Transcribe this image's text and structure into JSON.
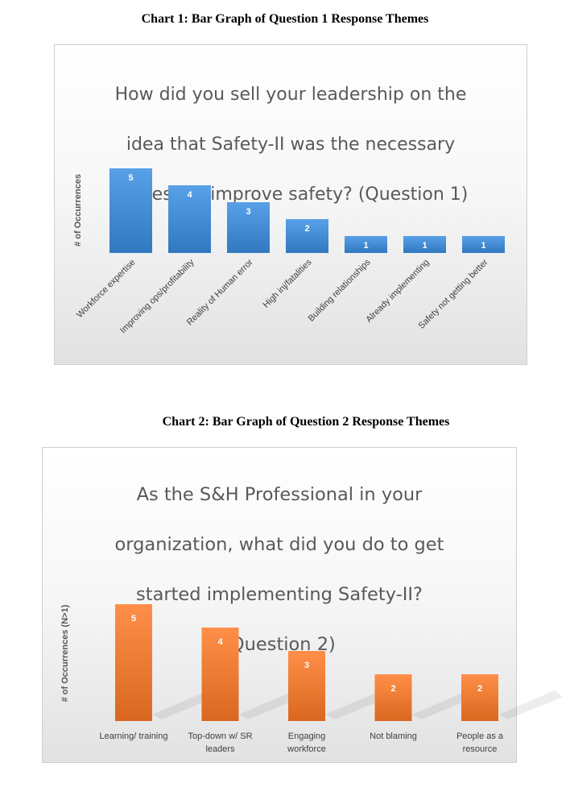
{
  "chart_data": [
    {
      "type": "bar",
      "caption": "Chart 1: Bar Graph of Question 1 Response Themes",
      "title": "How did you sell your leadership on the idea that Safety-II was the necessary process to improve safety? (Question 1)",
      "title_lines": [
        "How did you sell your leadership on the",
        "idea that Safety-II was the necessary",
        "process to improve safety? (Question 1)"
      ],
      "ylabel": "# of Occurrences",
      "xlabel": "",
      "categories": [
        "Workforce expertise",
        "Improving ops/profitability",
        "Reality of Human error",
        "High inj/fatalities",
        "Building relationships",
        "Already implementing",
        "Safety not getting better"
      ],
      "values": [
        5,
        4,
        3,
        2,
        1,
        1,
        1
      ],
      "ylim": [
        0,
        5
      ],
      "grid": false,
      "color": "#3f87cf"
    },
    {
      "type": "bar",
      "caption": "Chart 2: Bar Graph of Question 2 Response Themes",
      "title": "As the S&H Professional in your organization, what did you do to get started implementing Safety-II? (Question 2)",
      "title_lines": [
        "As the S&H Professional in your",
        "organization, what did you do to get",
        "started implementing Safety-II?",
        "(Question 2)"
      ],
      "ylabel": "# of Occurrences (N>1)",
      "xlabel": "",
      "categories": [
        "Learning/ training",
        "Top-down w/ SR leaders",
        "Engaging workforce",
        "Not blaming",
        "People as a resource"
      ],
      "category_lines": [
        [
          "Learning/ training"
        ],
        [
          "Top-down w/ SR",
          "leaders"
        ],
        [
          "Engaging",
          "workforce"
        ],
        [
          "Not blaming"
        ],
        [
          "People as a",
          "resource"
        ]
      ],
      "values": [
        5,
        4,
        3,
        2,
        2
      ],
      "ylim": [
        0,
        5
      ],
      "grid": false,
      "color": "#e8762f"
    }
  ]
}
